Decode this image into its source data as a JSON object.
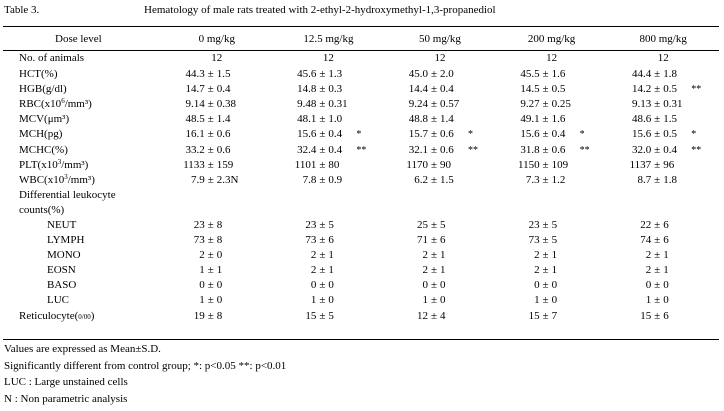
{
  "table_number": "Table 3.",
  "title": "Hematology of male rats treated with 2-ethyl-2-hydroxymethyl-1,3-propanediol",
  "header": {
    "label": "Dose level",
    "doses": [
      "0 mg/kg",
      "12.5 mg/kg",
      "50 mg/kg",
      "200 mg/kg",
      "800 mg/kg"
    ]
  },
  "animals_row": {
    "label": "No. of animals",
    "values": [
      "12",
      "12",
      "12",
      "12",
      "12"
    ]
  },
  "rows": [
    {
      "label": "HCT(%)",
      "cells": [
        [
          "44.3",
          "1.5",
          ""
        ],
        [
          "45.6",
          "1.3",
          ""
        ],
        [
          "45.0",
          "2.0",
          ""
        ],
        [
          "45.5",
          "1.6",
          ""
        ],
        [
          "44.4",
          "1.8",
          ""
        ]
      ]
    },
    {
      "label": "HGB(g/dl)",
      "cells": [
        [
          "14.7",
          "0.4",
          ""
        ],
        [
          "14.8",
          "0.3",
          ""
        ],
        [
          "14.4",
          "0.4",
          ""
        ],
        [
          "14.5",
          "0.5",
          ""
        ],
        [
          "14.2",
          "0.5",
          "**"
        ]
      ]
    },
    {
      "label_pre": "RBC(x10",
      "label_sup": "6",
      "label_post": "/mm³)",
      "cells": [
        [
          "9.14",
          "0.38",
          ""
        ],
        [
          "9.48",
          "0.31",
          ""
        ],
        [
          "9.24",
          "0.57",
          ""
        ],
        [
          "9.27",
          "0.25",
          ""
        ],
        [
          "9.13",
          "0.31",
          ""
        ]
      ]
    },
    {
      "label": "MCV(μm³)",
      "cells": [
        [
          "48.5",
          "1.4",
          ""
        ],
        [
          "48.1",
          "1.0",
          ""
        ],
        [
          "48.8",
          "1.4",
          ""
        ],
        [
          "49.1",
          "1.6",
          ""
        ],
        [
          "48.6",
          "1.5",
          ""
        ]
      ]
    },
    {
      "label": "MCH(pg)",
      "cells": [
        [
          "16.1",
          "0.6",
          ""
        ],
        [
          "15.6",
          "0.4",
          "*"
        ],
        [
          "15.7",
          "0.6",
          "*"
        ],
        [
          "15.6",
          "0.4",
          "*"
        ],
        [
          "15.6",
          "0.5",
          "*"
        ]
      ]
    },
    {
      "label": "MCHC(%)",
      "cells": [
        [
          "33.2",
          "0.6",
          ""
        ],
        [
          "32.4",
          "0.4",
          "**"
        ],
        [
          "32.1",
          "0.6",
          "**"
        ],
        [
          "31.8",
          "0.6",
          "**"
        ],
        [
          "32.0",
          "0.4",
          "**"
        ]
      ]
    },
    {
      "label_pre": "PLT(x10",
      "label_sup": "3",
      "label_post": "/mm³)",
      "cells": [
        [
          "1133",
          "159",
          ""
        ],
        [
          "1101",
          "80",
          ""
        ],
        [
          "1170",
          "90",
          ""
        ],
        [
          "1150",
          "109",
          ""
        ],
        [
          "1137",
          "96",
          ""
        ]
      ]
    },
    {
      "label_pre": "WBC(x10",
      "label_sup": "3",
      "label_post": "/mm³)",
      "cells": [
        [
          "7.9",
          "2.3N",
          ""
        ],
        [
          "7.8",
          "0.9",
          ""
        ],
        [
          "6.2",
          "1.5",
          ""
        ],
        [
          "7.3",
          "1.2",
          ""
        ],
        [
          "8.7",
          "1.8",
          ""
        ]
      ]
    }
  ],
  "differential": {
    "heading_line1": "Differential leukocyte",
    "heading_line2": "counts(%)",
    "rows": [
      {
        "label": "NEUT",
        "cells": [
          [
            "23",
            "8"
          ],
          [
            "23",
            "5"
          ],
          [
            "25",
            "5"
          ],
          [
            "23",
            "5"
          ],
          [
            "22",
            "6"
          ]
        ]
      },
      {
        "label": "LYMPH",
        "cells": [
          [
            "73",
            "8"
          ],
          [
            "73",
            "6"
          ],
          [
            "71",
            "6"
          ],
          [
            "73",
            "5"
          ],
          [
            "74",
            "6"
          ]
        ]
      },
      {
        "label": "MONO",
        "cells": [
          [
            "2",
            "0"
          ],
          [
            "2",
            "1"
          ],
          [
            "2",
            "1"
          ],
          [
            "2",
            "1"
          ],
          [
            "2",
            "1"
          ]
        ]
      },
      {
        "label": "EOSN",
        "cells": [
          [
            "1",
            "1"
          ],
          [
            "2",
            "1"
          ],
          [
            "2",
            "1"
          ],
          [
            "2",
            "1"
          ],
          [
            "2",
            "1"
          ]
        ]
      },
      {
        "label": "BASO",
        "cells": [
          [
            "0",
            "0"
          ],
          [
            "0",
            "0"
          ],
          [
            "0",
            "0"
          ],
          [
            "0",
            "0"
          ],
          [
            "0",
            "0"
          ]
        ]
      },
      {
        "label": "LUC",
        "cells": [
          [
            "1",
            "0"
          ],
          [
            "1",
            "0"
          ],
          [
            "1",
            "0"
          ],
          [
            "1",
            "0"
          ],
          [
            "1",
            "0"
          ]
        ]
      }
    ]
  },
  "reticulocyte": {
    "label_pre": "Reticulocyte(",
    "label_unit": "0/00",
    "label_post": ")",
    "cells": [
      [
        "19",
        "8"
      ],
      [
        "15",
        "5"
      ],
      [
        "12",
        "4"
      ],
      [
        "15",
        "7"
      ],
      [
        "15",
        "6"
      ]
    ]
  },
  "pm_symbol": "±",
  "notes": [
    "Values are expressed as Mean±S.D.",
    "Significantly different from control group;  *: p<0.05 **: p<0.01",
    "LUC : Large unstained cells",
    "N : Non parametric analysis"
  ]
}
